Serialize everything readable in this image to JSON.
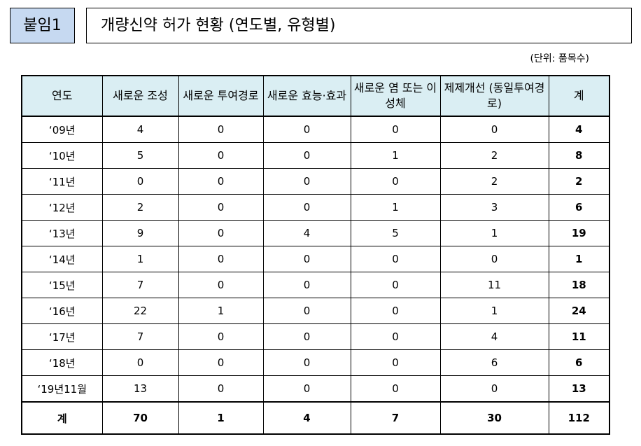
{
  "header": {
    "label": "붙임1",
    "title": "개량신약 허가 현황 (연도별, 유형별)",
    "unit": "(단위: 품목수)"
  },
  "table": {
    "columns": [
      "연도",
      "새로운 조성",
      "새로운 투여경로",
      "새로운 효능·효과",
      "새로운 염 또는 이성체",
      "제제개선 (동일투여경로)",
      "계"
    ],
    "rows": [
      [
        "‘09년",
        "4",
        "0",
        "0",
        "0",
        "0",
        "4"
      ],
      [
        "‘10년",
        "5",
        "0",
        "0",
        "1",
        "2",
        "8"
      ],
      [
        "‘11년",
        "0",
        "0",
        "0",
        "0",
        "2",
        "2"
      ],
      [
        "‘12년",
        "2",
        "0",
        "0",
        "1",
        "3",
        "6"
      ],
      [
        "‘13년",
        "9",
        "0",
        "4",
        "5",
        "1",
        "19"
      ],
      [
        "‘14년",
        "1",
        "0",
        "0",
        "0",
        "0",
        "1"
      ],
      [
        "‘15년",
        "7",
        "0",
        "0",
        "0",
        "11",
        "18"
      ],
      [
        "‘16년",
        "22",
        "1",
        "0",
        "0",
        "1",
        "24"
      ],
      [
        "‘17년",
        "7",
        "0",
        "0",
        "0",
        "4",
        "11"
      ],
      [
        "‘18년",
        "0",
        "0",
        "0",
        "0",
        "6",
        "6"
      ],
      [
        "‘19년11월",
        "13",
        "0",
        "0",
        "0",
        "0",
        "13"
      ]
    ],
    "total": [
      "계",
      "70",
      "1",
      "4",
      "7",
      "30",
      "112"
    ]
  }
}
